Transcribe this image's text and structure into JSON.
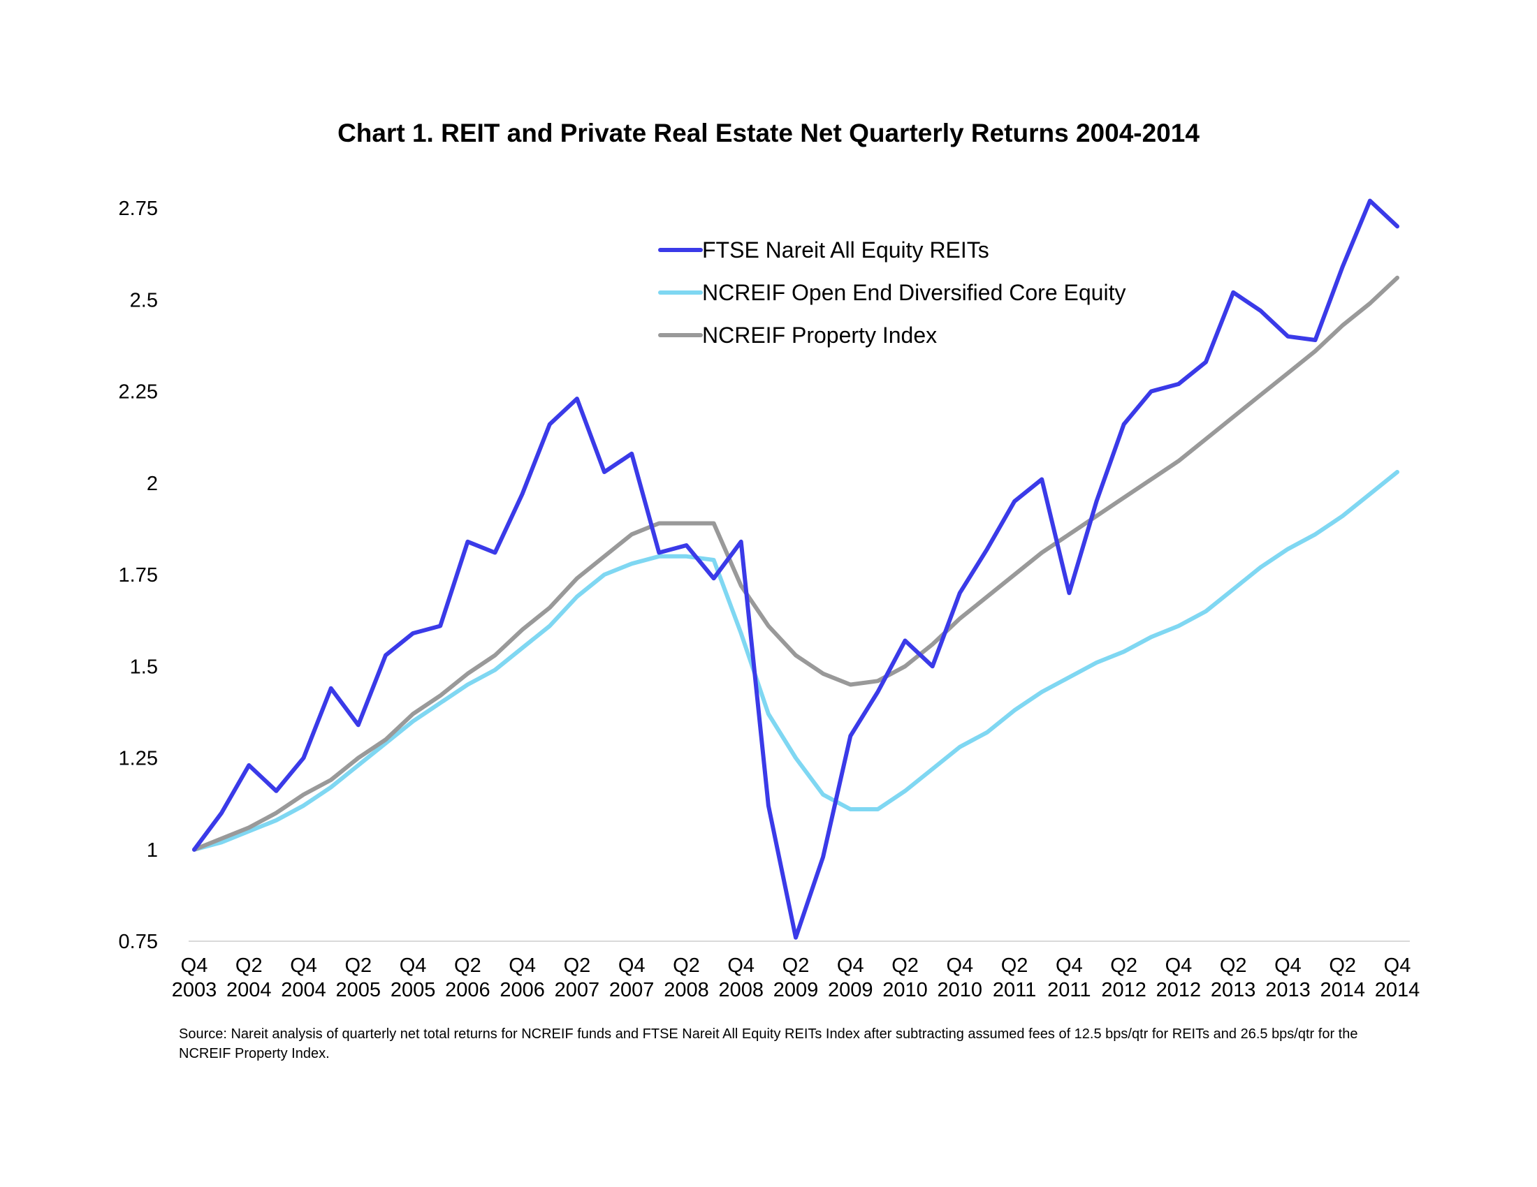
{
  "chart_data": {
    "type": "line",
    "title": "Chart 1. REIT and Private Real Estate Net Quarterly Returns 2004-2014",
    "xlabel": "",
    "ylabel": "",
    "ylim": [
      0.75,
      2.75
    ],
    "yticks": [
      "0.75",
      "1",
      "1.25",
      "1.5",
      "1.75",
      "2",
      "2.25",
      "2.5",
      "2.75"
    ],
    "ytick_values": [
      0.75,
      1,
      1.25,
      1.5,
      1.75,
      2,
      2.25,
      2.5,
      2.75
    ],
    "x": [
      "Q4 2003",
      "Q1 2004",
      "Q2 2004",
      "Q3 2004",
      "Q4 2004",
      "Q1 2005",
      "Q2 2005",
      "Q3 2005",
      "Q4 2005",
      "Q1 2006",
      "Q2 2006",
      "Q3 2006",
      "Q4 2006",
      "Q1 2007",
      "Q2 2007",
      "Q3 2007",
      "Q4 2007",
      "Q1 2008",
      "Q2 2008",
      "Q3 2008",
      "Q4 2008",
      "Q1 2009",
      "Q2 2009",
      "Q3 2009",
      "Q4 2009",
      "Q1 2010",
      "Q2 2010",
      "Q3 2010",
      "Q4 2010",
      "Q1 2011",
      "Q2 2011",
      "Q3 2011",
      "Q4 2011",
      "Q1 2012",
      "Q2 2012",
      "Q3 2012",
      "Q4 2012",
      "Q1 2013",
      "Q2 2013",
      "Q3 2013",
      "Q4 2013",
      "Q1 2014",
      "Q2 2014",
      "Q3 2014",
      "Q4 2014"
    ],
    "xtick_labels": [
      {
        "index": 0,
        "q": "Q4",
        "year": "2003"
      },
      {
        "index": 2,
        "q": "Q2",
        "year": "2004"
      },
      {
        "index": 4,
        "q": "Q4",
        "year": "2004"
      },
      {
        "index": 6,
        "q": "Q2",
        "year": "2005"
      },
      {
        "index": 8,
        "q": "Q4",
        "year": "2005"
      },
      {
        "index": 10,
        "q": "Q2",
        "year": "2006"
      },
      {
        "index": 12,
        "q": "Q4",
        "year": "2006"
      },
      {
        "index": 14,
        "q": "Q2",
        "year": "2007"
      },
      {
        "index": 16,
        "q": "Q4",
        "year": "2007"
      },
      {
        "index": 18,
        "q": "Q2",
        "year": "2008"
      },
      {
        "index": 20,
        "q": "Q4",
        "year": "2008"
      },
      {
        "index": 22,
        "q": "Q2",
        "year": "2009"
      },
      {
        "index": 24,
        "q": "Q4",
        "year": "2009"
      },
      {
        "index": 26,
        "q": "Q2",
        "year": "2010"
      },
      {
        "index": 28,
        "q": "Q4",
        "year": "2010"
      },
      {
        "index": 30,
        "q": "Q2",
        "year": "2011"
      },
      {
        "index": 32,
        "q": "Q4",
        "year": "2011"
      },
      {
        "index": 34,
        "q": "Q2",
        "year": "2012"
      },
      {
        "index": 36,
        "q": "Q4",
        "year": "2012"
      },
      {
        "index": 38,
        "q": "Q2",
        "year": "2013"
      },
      {
        "index": 40,
        "q": "Q4",
        "year": "2013"
      },
      {
        "index": 42,
        "q": "Q2",
        "year": "2014"
      },
      {
        "index": 44,
        "q": "Q4",
        "year": "2014"
      }
    ],
    "legend_position": "top-center",
    "grid": false,
    "series": [
      {
        "name": "FTSE Nareit All Equity REITs",
        "color": "#3a3ae8",
        "values": [
          1.0,
          1.1,
          1.23,
          1.16,
          1.25,
          1.44,
          1.34,
          1.53,
          1.59,
          1.61,
          1.84,
          1.81,
          1.97,
          2.16,
          2.23,
          2.03,
          2.08,
          1.81,
          1.83,
          1.74,
          1.84,
          1.12,
          0.76,
          0.98,
          1.31,
          1.43,
          1.57,
          1.5,
          1.7,
          1.82,
          1.95,
          2.01,
          1.7,
          1.95,
          2.16,
          2.25,
          2.27,
          2.33,
          2.52,
          2.47,
          2.4,
          2.39,
          2.59,
          2.77,
          2.7
        ]
      },
      {
        "name": "NCREIF Open End Diversified Core Equity",
        "color": "#7fd7f2",
        "values": [
          1.0,
          1.02,
          1.05,
          1.08,
          1.12,
          1.17,
          1.23,
          1.29,
          1.35,
          1.4,
          1.45,
          1.49,
          1.55,
          1.61,
          1.69,
          1.75,
          1.78,
          1.8,
          1.8,
          1.79,
          1.59,
          1.37,
          1.25,
          1.15,
          1.11,
          1.11,
          1.16,
          1.22,
          1.28,
          1.32,
          1.38,
          1.43,
          1.47,
          1.51,
          1.54,
          1.58,
          1.61,
          1.65,
          1.71,
          1.77,
          1.82,
          1.86,
          1.91,
          1.97,
          2.03
        ]
      },
      {
        "name": "NCREIF Property Index",
        "color": "#999999",
        "values": [
          1.0,
          1.03,
          1.06,
          1.1,
          1.15,
          1.19,
          1.25,
          1.3,
          1.37,
          1.42,
          1.48,
          1.53,
          1.6,
          1.66,
          1.74,
          1.8,
          1.86,
          1.89,
          1.89,
          1.89,
          1.72,
          1.61,
          1.53,
          1.48,
          1.45,
          1.46,
          1.5,
          1.56,
          1.63,
          1.69,
          1.75,
          1.81,
          1.86,
          1.91,
          1.96,
          2.01,
          2.06,
          2.12,
          2.18,
          2.24,
          2.3,
          2.36,
          2.43,
          2.49,
          2.56
        ]
      }
    ],
    "source": "Source: Nareit analysis of quarterly net total returns for NCREIF funds and FTSE Nareit All Equity REITs Index after subtracting assumed fees of 12.5 bps/qtr for REITs and 26.5 bps/qtr for the NCREIF Property Index."
  }
}
